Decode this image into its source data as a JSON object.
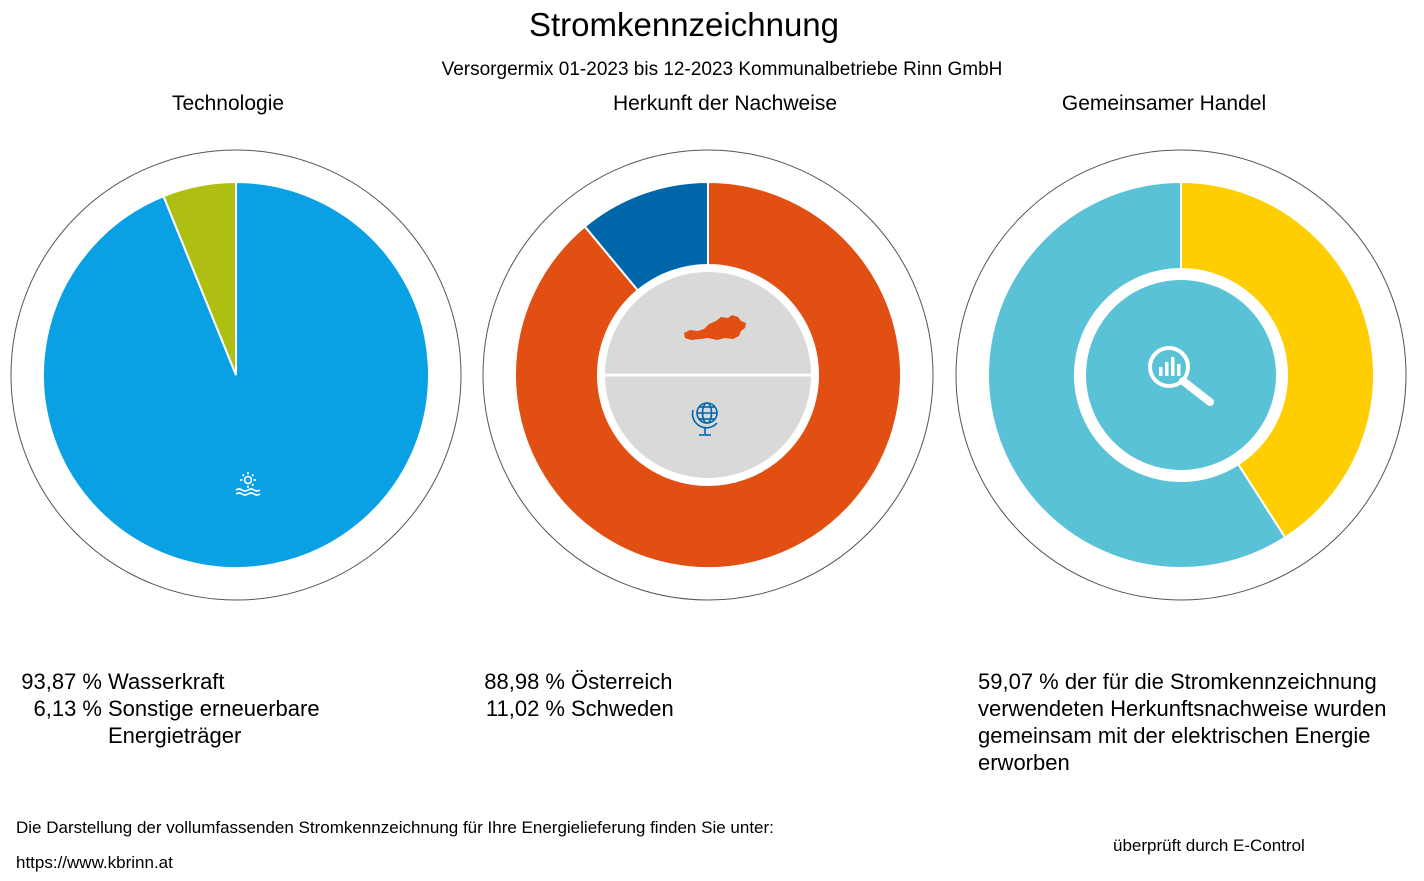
{
  "title": "Stromkennzeichnung",
  "subtitle": "Versorgermix 01-2023 bis 12-2023 Kommunalbetriebe Rinn GmbH",
  "chart_data": [
    {
      "type": "pie",
      "title": "Technologie",
      "slices": [
        {
          "pct": "93,87 %",
          "label": "Wasserkraft",
          "value": 93.87,
          "color": "#09A1E3",
          "icon": "hydro-icon"
        },
        {
          "pct": "6,13 %",
          "label": "Sonstige erneuerbare Energieträger",
          "value": 6.13,
          "color": "#AEBF12",
          "icon": ""
        }
      ]
    },
    {
      "type": "donut",
      "title": "Herkunft der Nachweise",
      "slices": [
        {
          "pct": "88,98 %",
          "label": "Österreich",
          "value": 88.98,
          "color": "#E14F12",
          "icon": "austria-map-icon"
        },
        {
          "pct": "11,02 %",
          "label": "Schweden",
          "value": 11.02,
          "color": "#0066AA",
          "icon": "globe-icon"
        }
      ]
    },
    {
      "type": "donut",
      "title": "Gemeinsamer Handel",
      "slices": [
        {
          "value": 40.93,
          "color": "#FECE00"
        },
        {
          "value": 59.07,
          "color": "#5AC2D6"
        }
      ],
      "legend_text": "59,07 % der für die Stromkennzeichnung verwendeten Herkunftsnachweise wurden gemeinsam mit der elektrischen Energie erworben",
      "icon": "magnifier-chart-icon"
    }
  ],
  "footer": {
    "text": "Die Darstellung der vollumfassenden Stromkennzeichnung für Ihre Energielieferung finden Sie unter:",
    "url": "https://www.kbrinn.at",
    "verified": "überprüft durch E-Control"
  }
}
